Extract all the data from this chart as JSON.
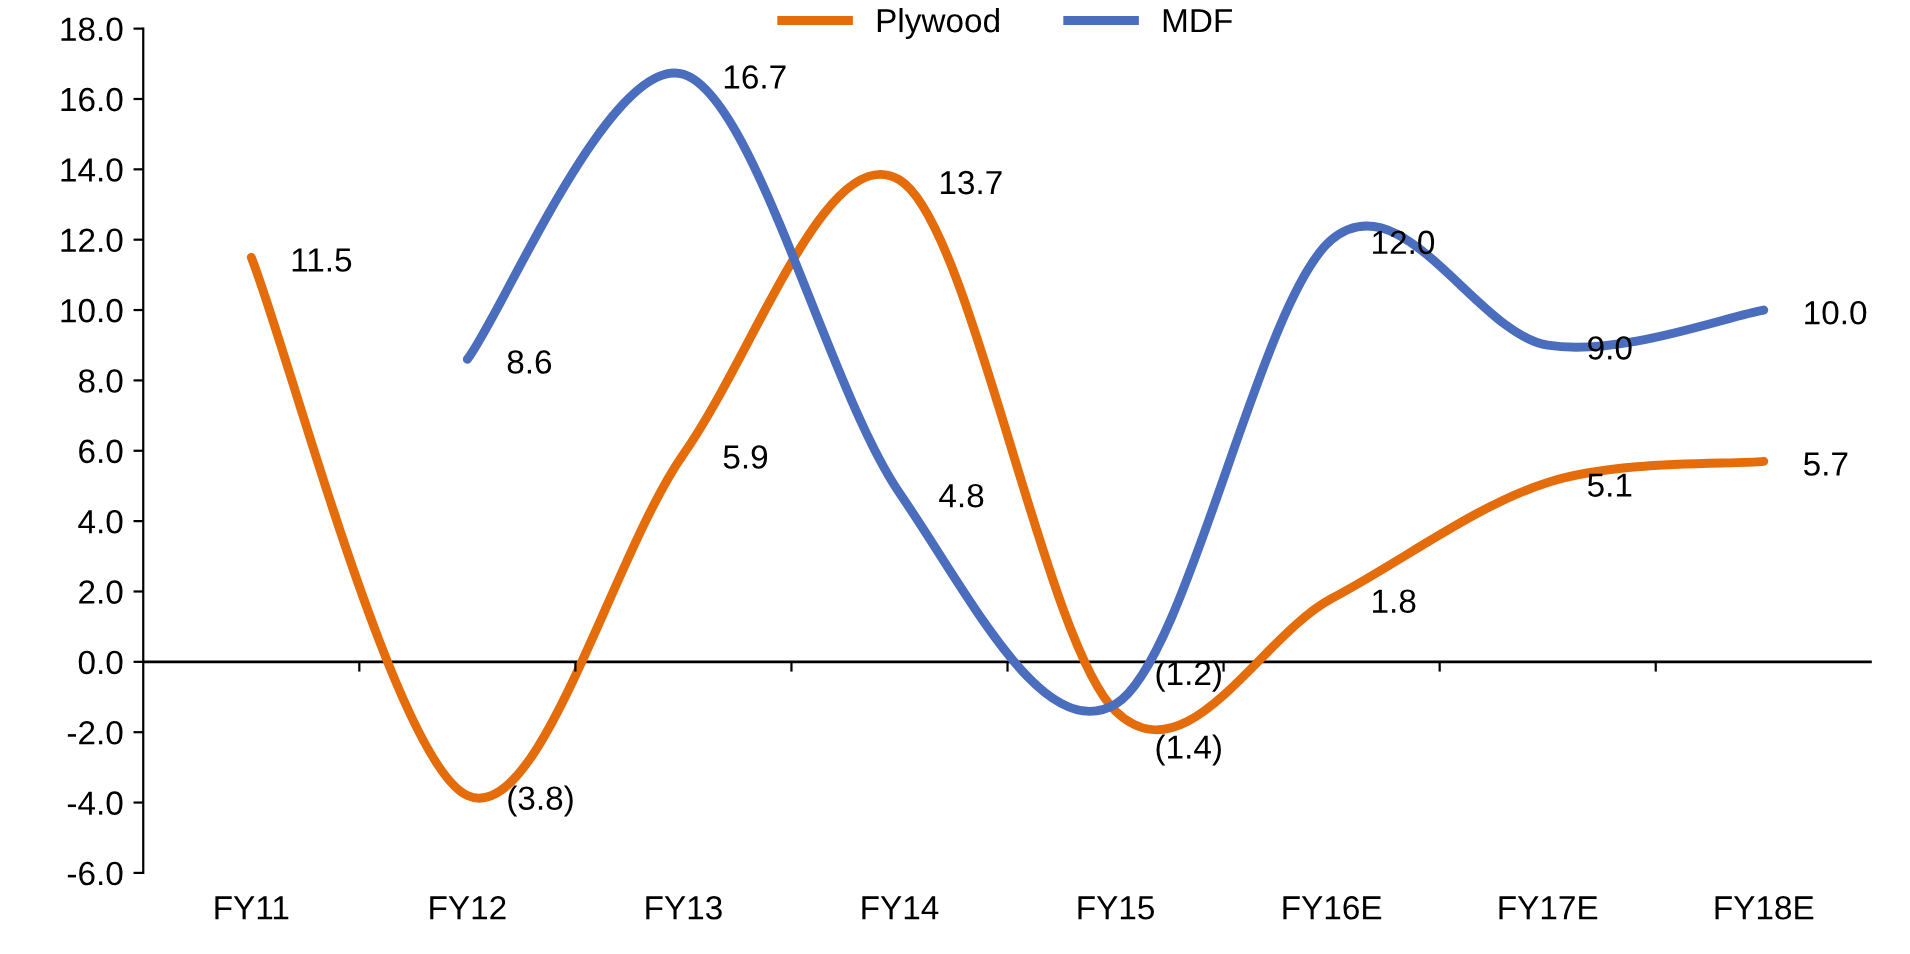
{
  "chart_data": {
    "type": "line",
    "categories": [
      "FY11",
      "FY12",
      "FY13",
      "FY14",
      "FY15",
      "FY16E",
      "FY17E",
      "FY18E"
    ],
    "series": [
      {
        "name": "Plywood",
        "color": "#e46c0a",
        "values": [
          11.5,
          -3.8,
          5.9,
          13.7,
          -1.4,
          1.8,
          5.1,
          5.7
        ],
        "value_labels": [
          "11.5",
          "(3.8)",
          "5.9",
          "13.7",
          "(1.4)",
          "1.8",
          "5.1",
          "5.7"
        ]
      },
      {
        "name": "MDF",
        "color": "#4a6ebd",
        "values": [
          null,
          8.6,
          16.7,
          4.8,
          -1.2,
          12.0,
          9.0,
          10.0
        ],
        "value_labels": [
          null,
          "8.6",
          "16.7",
          "4.8",
          "(1.2)",
          "12.0",
          "9.0",
          "10.0"
        ]
      }
    ],
    "ylim": [
      -6,
      18
    ],
    "yticks": [
      {
        "value": -6,
        "label": "-6.0"
      },
      {
        "value": -4,
        "label": "-4.0"
      },
      {
        "value": -2,
        "label": "-2.0"
      },
      {
        "value": 0,
        "label": "0.0"
      },
      {
        "value": 2,
        "label": "2.0"
      },
      {
        "value": 4,
        "label": "4.0"
      },
      {
        "value": 6,
        "label": "6.0"
      },
      {
        "value": 8,
        "label": "8.0"
      },
      {
        "value": 10,
        "label": "10.0"
      },
      {
        "value": 12,
        "label": "12.0"
      },
      {
        "value": 14,
        "label": "14.0"
      },
      {
        "value": 16,
        "label": "16.0"
      },
      {
        "value": 18,
        "label": "18.0"
      }
    ],
    "ref_lines": [
      {
        "axis": "y",
        "value": 0,
        "color": "#000000",
        "line_style": "solid"
      }
    ],
    "legend": "top",
    "grid": false,
    "marker": "none",
    "line_style": "solid"
  }
}
